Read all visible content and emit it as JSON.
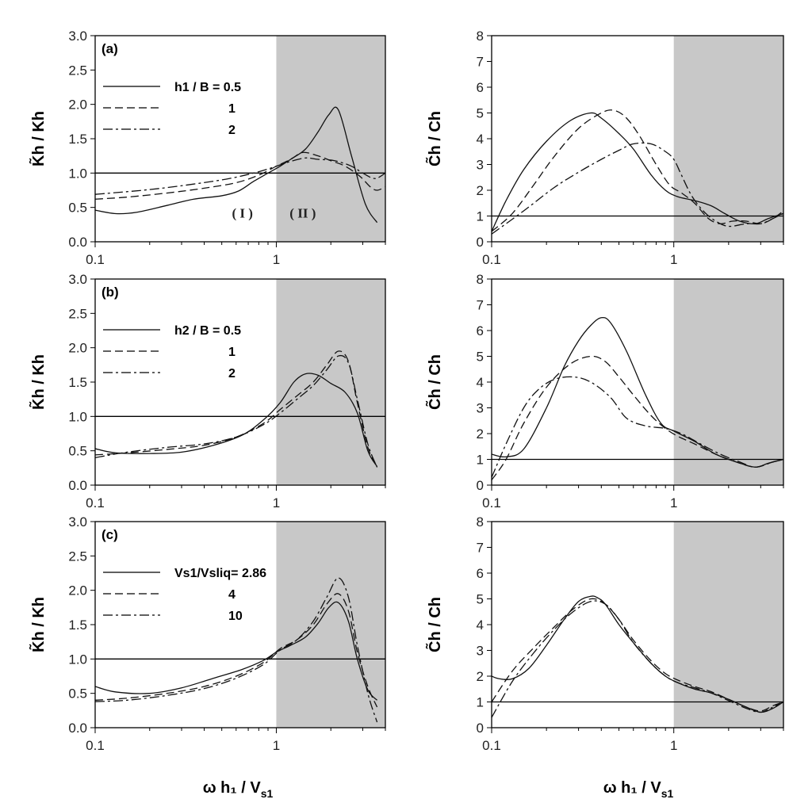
{
  "figure": {
    "xlabel_left": "ω h₁ / V",
    "xlabel_left_sub": "s1",
    "xlabel_right": "ω h₁ / V",
    "xlabel_right_sub": "s1"
  },
  "chart_data": [
    {
      "type": "line",
      "panel_tag": "(a)",
      "xscale": "log",
      "xlim": [
        0.1,
        4
      ],
      "ylim": [
        0,
        3
      ],
      "yticks": [
        "0.0",
        "0.5",
        "1.0",
        "1.5",
        "2.0",
        "2.5",
        "3.0"
      ],
      "xticks": [
        "0.1",
        "1"
      ],
      "ylabel": "K̃h / Kh",
      "shaded_from_x": 1,
      "reference_line_y": 1,
      "region_labels": [
        "( I )",
        "( II )"
      ],
      "legend": [
        "h1 / B = 0.5",
        "1",
        "2"
      ],
      "series": [
        {
          "name": "h1 / B = 0.5",
          "style": "solid",
          "x": [
            0.1,
            0.13,
            0.17,
            0.25,
            0.35,
            0.5,
            0.62,
            0.75,
            0.9,
            1.05,
            1.2,
            1.45,
            1.7,
            1.95,
            2.2,
            2.6,
            3.1,
            3.6
          ],
          "y": [
            0.46,
            0.41,
            0.43,
            0.53,
            0.62,
            0.67,
            0.74,
            0.88,
            1.0,
            1.1,
            1.2,
            1.35,
            1.6,
            1.85,
            1.92,
            1.25,
            0.55,
            0.28
          ]
        },
        {
          "name": "1",
          "style": "dashed",
          "x": [
            0.1,
            0.15,
            0.25,
            0.4,
            0.6,
            0.8,
            1.0,
            1.2,
            1.4,
            1.7,
            2.0,
            2.4,
            2.9,
            3.3,
            3.6,
            4.0
          ],
          "y": [
            0.62,
            0.65,
            0.71,
            0.78,
            0.86,
            0.97,
            1.1,
            1.2,
            1.3,
            1.25,
            1.18,
            1.1,
            0.95,
            0.8,
            0.75,
            0.8
          ]
        },
        {
          "name": "2",
          "style": "dashdot",
          "x": [
            0.1,
            0.2,
            0.35,
            0.55,
            0.8,
            1.0,
            1.2,
            1.45,
            1.7,
            2.1,
            2.6,
            3.0,
            3.5,
            4.0
          ],
          "y": [
            0.69,
            0.76,
            0.84,
            0.92,
            1.02,
            1.1,
            1.17,
            1.22,
            1.2,
            1.18,
            1.1,
            1.0,
            0.92,
            1.0
          ]
        }
      ]
    },
    {
      "type": "line",
      "panel_tag": "(b)",
      "xscale": "log",
      "xlim": [
        0.1,
        4
      ],
      "ylim": [
        0,
        3
      ],
      "yticks": [
        "0.0",
        "0.5",
        "1.0",
        "1.5",
        "2.0",
        "2.5",
        "3.0"
      ],
      "xticks": [
        "0.1",
        "1"
      ],
      "ylabel": "K̃h / Kh",
      "shaded_from_x": 1,
      "reference_line_y": 1,
      "legend": [
        "h2 / B = 0.5",
        "1",
        "2"
      ],
      "series": [
        {
          "name": "h2 / B = 0.5",
          "style": "solid",
          "x": [
            0.1,
            0.13,
            0.2,
            0.3,
            0.45,
            0.65,
            0.85,
            1.05,
            1.25,
            1.45,
            1.7,
            2.0,
            2.4,
            2.8,
            3.2,
            3.6
          ],
          "y": [
            0.53,
            0.47,
            0.46,
            0.48,
            0.58,
            0.73,
            0.95,
            1.2,
            1.5,
            1.62,
            1.6,
            1.48,
            1.35,
            1.05,
            0.5,
            0.27
          ]
        },
        {
          "name": "1",
          "style": "dashed",
          "x": [
            0.1,
            0.15,
            0.25,
            0.4,
            0.6,
            0.85,
            1.05,
            1.3,
            1.6,
            1.9,
            2.2,
            2.5,
            2.8,
            3.2,
            3.6
          ],
          "y": [
            0.44,
            0.47,
            0.52,
            0.58,
            0.7,
            0.9,
            1.1,
            1.3,
            1.5,
            1.75,
            1.95,
            1.8,
            1.2,
            0.55,
            0.27
          ]
        },
        {
          "name": "2",
          "style": "dashdot",
          "x": [
            0.1,
            0.15,
            0.25,
            0.4,
            0.6,
            0.85,
            1.05,
            1.3,
            1.6,
            1.9,
            2.2,
            2.5,
            2.8,
            3.2,
            3.6
          ],
          "y": [
            0.4,
            0.48,
            0.55,
            0.6,
            0.7,
            0.88,
            1.05,
            1.25,
            1.45,
            1.68,
            1.88,
            1.78,
            1.25,
            0.6,
            0.26
          ]
        }
      ]
    },
    {
      "type": "line",
      "panel_tag": "(c)",
      "xscale": "log",
      "xlim": [
        0.1,
        4
      ],
      "ylim": [
        0,
        3
      ],
      "yticks": [
        "0.0",
        "0.5",
        "1.0",
        "1.5",
        "2.0",
        "2.5",
        "3.0"
      ],
      "xticks": [
        "0.1",
        "1"
      ],
      "ylabel": "K̃h / Kh",
      "shaded_from_x": 1,
      "reference_line_y": 1,
      "legend": [
        "Vs1/Vsliq= 2.86",
        "4",
        "10"
      ],
      "series": [
        {
          "name": "Vs1/Vsliq= 2.86",
          "style": "solid",
          "x": [
            0.1,
            0.13,
            0.2,
            0.3,
            0.45,
            0.65,
            0.85,
            1.0,
            1.2,
            1.45,
            1.7,
            1.95,
            2.2,
            2.5,
            2.8,
            3.2,
            3.6
          ],
          "y": [
            0.6,
            0.52,
            0.5,
            0.58,
            0.72,
            0.85,
            0.98,
            1.1,
            1.2,
            1.32,
            1.52,
            1.75,
            1.82,
            1.55,
            1.0,
            0.55,
            0.4
          ]
        },
        {
          "name": "4",
          "style": "dashed",
          "x": [
            0.1,
            0.15,
            0.25,
            0.4,
            0.6,
            0.85,
            1.05,
            1.3,
            1.6,
            1.9,
            2.2,
            2.5,
            2.8,
            3.2,
            3.6
          ],
          "y": [
            0.4,
            0.43,
            0.5,
            0.6,
            0.75,
            0.95,
            1.15,
            1.28,
            1.5,
            1.8,
            1.95,
            1.7,
            1.1,
            0.6,
            0.3
          ]
        },
        {
          "name": "10",
          "style": "dashdot",
          "x": [
            0.1,
            0.15,
            0.25,
            0.4,
            0.6,
            0.85,
            1.05,
            1.3,
            1.6,
            1.9,
            2.2,
            2.5,
            2.8,
            3.2,
            3.6
          ],
          "y": [
            0.38,
            0.4,
            0.47,
            0.57,
            0.72,
            0.92,
            1.13,
            1.28,
            1.55,
            1.9,
            2.18,
            1.9,
            1.2,
            0.5,
            0.08
          ]
        }
      ]
    },
    {
      "type": "line",
      "xscale": "log",
      "xlim": [
        0.1,
        4
      ],
      "ylim": [
        0,
        8
      ],
      "yticks": [
        "0",
        "1",
        "2",
        "3",
        "4",
        "5",
        "6",
        "7",
        "8"
      ],
      "xticks": [
        "0.1",
        "1"
      ],
      "ylabel": "C̃h / Ch",
      "shaded_from_x": 1,
      "reference_line_y": 1,
      "series": [
        {
          "name": "h1 / B = 0.5",
          "style": "solid",
          "x": [
            0.1,
            0.12,
            0.15,
            0.2,
            0.27,
            0.35,
            0.4,
            0.5,
            0.6,
            0.75,
            0.9,
            1.05,
            1.3,
            1.6,
            1.9,
            2.3,
            2.8,
            3.3,
            4.0
          ],
          "y": [
            0.4,
            1.6,
            2.8,
            3.9,
            4.7,
            5.0,
            4.8,
            4.2,
            3.6,
            2.6,
            2.0,
            1.75,
            1.6,
            1.4,
            1.1,
            0.8,
            0.7,
            0.9,
            1.1
          ]
        },
        {
          "name": "1",
          "style": "dashed",
          "x": [
            0.1,
            0.13,
            0.17,
            0.22,
            0.3,
            0.4,
            0.47,
            0.55,
            0.65,
            0.8,
            0.95,
            1.1,
            1.3,
            1.55,
            1.8,
            2.1,
            2.5,
            3.0,
            3.5,
            4.0
          ],
          "y": [
            0.4,
            1.1,
            2.2,
            3.3,
            4.4,
            5.0,
            5.1,
            4.8,
            4.1,
            3.0,
            2.2,
            1.9,
            1.5,
            0.9,
            0.7,
            0.8,
            0.8,
            0.7,
            0.9,
            1.2
          ]
        },
        {
          "name": "2",
          "style": "dashdot",
          "x": [
            0.1,
            0.15,
            0.22,
            0.3,
            0.4,
            0.5,
            0.6,
            0.75,
            0.9,
            1.0,
            1.1,
            1.25,
            1.45,
            1.7,
            2.0,
            2.5,
            3.0,
            3.5,
            4.0
          ],
          "y": [
            0.3,
            1.2,
            2.1,
            2.7,
            3.2,
            3.55,
            3.8,
            3.8,
            3.5,
            3.2,
            2.6,
            1.8,
            1.2,
            0.8,
            0.6,
            0.7,
            0.7,
            0.9,
            1.1
          ]
        }
      ]
    },
    {
      "type": "line",
      "xscale": "log",
      "xlim": [
        0.1,
        4
      ],
      "ylim": [
        0,
        8
      ],
      "yticks": [
        "0",
        "1",
        "2",
        "3",
        "4",
        "5",
        "6",
        "7",
        "8"
      ],
      "xticks": [
        "0.1",
        "1"
      ],
      "ylabel": "C̃h / Ch",
      "shaded_from_x": 1,
      "reference_line_y": 1,
      "series": [
        {
          "name": "h2 / B = 0.5",
          "style": "solid",
          "x": [
            0.1,
            0.12,
            0.15,
            0.2,
            0.25,
            0.3,
            0.35,
            0.4,
            0.45,
            0.55,
            0.7,
            0.85,
            1.0,
            1.3,
            1.7,
            2.2,
            2.8,
            3.3,
            4.0
          ],
          "y": [
            1.2,
            1.1,
            1.4,
            3.0,
            4.6,
            5.6,
            6.2,
            6.5,
            6.3,
            5.2,
            3.5,
            2.4,
            2.1,
            1.7,
            1.2,
            0.9,
            0.7,
            0.85,
            1.0
          ]
        },
        {
          "name": "1",
          "style": "dashed",
          "x": [
            0.1,
            0.12,
            0.15,
            0.2,
            0.27,
            0.35,
            0.42,
            0.5,
            0.6,
            0.75,
            0.9,
            1.05,
            1.3,
            1.7,
            2.2,
            2.8,
            3.5,
            4.0
          ],
          "y": [
            0.2,
            1.0,
            2.4,
            3.8,
            4.7,
            5.0,
            4.8,
            4.2,
            3.5,
            2.7,
            2.2,
            1.9,
            1.6,
            1.2,
            0.9,
            0.7,
            0.9,
            1.0
          ]
        },
        {
          "name": "2",
          "style": "dashdot",
          "x": [
            0.1,
            0.12,
            0.15,
            0.18,
            0.22,
            0.28,
            0.35,
            0.45,
            0.55,
            0.7,
            0.9,
            1.1,
            1.4,
            1.8,
            2.3,
            2.8,
            3.5,
            4.0
          ],
          "y": [
            0.3,
            1.6,
            3.0,
            3.7,
            4.1,
            4.2,
            4.0,
            3.4,
            2.6,
            2.3,
            2.2,
            2.0,
            1.6,
            1.2,
            0.9,
            0.7,
            0.9,
            1.0
          ]
        }
      ]
    },
    {
      "type": "line",
      "xscale": "log",
      "xlim": [
        0.1,
        4
      ],
      "ylim": [
        0,
        8
      ],
      "yticks": [
        "0",
        "1",
        "2",
        "3",
        "4",
        "5",
        "6",
        "7",
        "8"
      ],
      "xticks": [
        "0.1",
        "1"
      ],
      "ylabel": "C̃h / Ch",
      "shaded_from_x": 1,
      "reference_line_y": 1,
      "series": [
        {
          "name": "Vs1/Vsliq= 2.86",
          "style": "solid",
          "x": [
            0.1,
            0.11,
            0.13,
            0.16,
            0.2,
            0.25,
            0.3,
            0.35,
            0.38,
            0.42,
            0.5,
            0.6,
            0.75,
            0.9,
            1.05,
            1.3,
            1.6,
            2.0,
            2.5,
            3.0,
            3.5,
            4.0
          ],
          "y": [
            2.0,
            1.9,
            1.9,
            2.3,
            3.2,
            4.2,
            4.9,
            5.1,
            5.05,
            4.8,
            4.0,
            3.3,
            2.5,
            2.0,
            1.75,
            1.5,
            1.35,
            1.1,
            0.8,
            0.6,
            0.75,
            1.0
          ]
        },
        {
          "name": "4",
          "style": "dashed",
          "x": [
            0.1,
            0.13,
            0.17,
            0.22,
            0.28,
            0.35,
            0.42,
            0.5,
            0.6,
            0.75,
            0.9,
            1.05,
            1.3,
            1.6,
            2.0,
            2.5,
            3.0,
            3.5,
            4.0
          ],
          "y": [
            1.0,
            2.2,
            3.1,
            3.9,
            4.6,
            5.0,
            4.8,
            4.2,
            3.4,
            2.6,
            2.1,
            1.85,
            1.6,
            1.4,
            1.1,
            0.8,
            0.65,
            0.85,
            1.0
          ]
        },
        {
          "name": "10",
          "style": "dashdot",
          "x": [
            0.1,
            0.13,
            0.17,
            0.22,
            0.28,
            0.35,
            0.42,
            0.5,
            0.6,
            0.75,
            0.9,
            1.05,
            1.3,
            1.6,
            2.0,
            2.5,
            3.0,
            3.5,
            4.0
          ],
          "y": [
            0.4,
            1.8,
            2.9,
            3.8,
            4.5,
            4.9,
            4.8,
            4.2,
            3.3,
            2.5,
            2.0,
            1.75,
            1.55,
            1.35,
            1.05,
            0.75,
            0.6,
            0.8,
            1.0
          ]
        }
      ]
    }
  ]
}
